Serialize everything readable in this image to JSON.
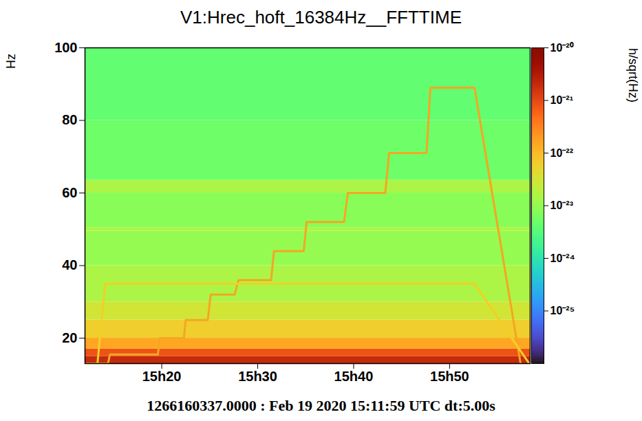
{
  "chart_data": {
    "type": "spectrogram",
    "title": "V1:Hrec_hoft_16384Hz__FFTTIME",
    "caption": "1266160337.0000 : Feb 19 2020 15:11:59 UTC dt:5.00s",
    "y_label": "Hz",
    "xlim": [
      12,
      58.4
    ],
    "xticks": [
      {
        "value": 20,
        "label": "15h20"
      },
      {
        "value": 30,
        "label": "15h30"
      },
      {
        "value": 40,
        "label": "15h40"
      },
      {
        "value": 50,
        "label": "15h50"
      }
    ],
    "ylim": [
      13,
      100
    ],
    "yticks": [
      20,
      40,
      60,
      80,
      100
    ],
    "cells": [
      {
        "f0": 13,
        "f1": 15,
        "value": 2e-21
      },
      {
        "f0": 15,
        "f1": 17,
        "value": 8e-22
      },
      {
        "f0": 17,
        "f1": 20,
        "value": 1.5e-22
      },
      {
        "f0": 20,
        "f1": 25,
        "value": 6e-23
      },
      {
        "f0": 25,
        "f1": 30,
        "value": 3e-23
      },
      {
        "f0": 30,
        "f1": 40,
        "value": 1.5e-23
      },
      {
        "f0": 40,
        "f1": 49.5,
        "value": 1e-23
      },
      {
        "f0": 49.5,
        "f1": 50.5,
        "value": 1.5e-23
      },
      {
        "f0": 50.5,
        "f1": 60,
        "value": 8e-24
      },
      {
        "f0": 60,
        "f1": 63.5,
        "value": 1.5e-23
      },
      {
        "f0": 63.5,
        "f1": 80,
        "value": 5e-24
      },
      {
        "f0": 80,
        "f1": 100,
        "value": 4e-24
      }
    ],
    "series": [
      {
        "color": "#f5a623",
        "x": [
          12.0,
          14.4,
          14.6,
          19.6,
          19.8,
          22.3,
          22.5,
          24.8,
          25.1,
          27.6,
          28.0,
          31.4,
          31.7,
          34.8,
          35.1,
          39.0,
          39.4,
          43.3,
          43.7,
          47.6,
          48.0,
          52.6,
          57.4
        ],
        "values": [
          13,
          13,
          15.5,
          15.5,
          20,
          20,
          25,
          25,
          32,
          32,
          36,
          36,
          44,
          44,
          52,
          52,
          60,
          60,
          71,
          71,
          89,
          89,
          13
        ]
      },
      {
        "color": "#f2d024",
        "x": [
          13.3,
          14.1,
          52.6,
          58.3
        ],
        "values": [
          13,
          35,
          35,
          13
        ]
      }
    ],
    "colorbar": {
      "label": "h/sqrt(Hz)",
      "log": true,
      "range": [
        1e-26,
        1e-20
      ],
      "ticks": [
        {
          "value": 1e-25,
          "label": "10⁻²⁵"
        },
        {
          "value": 1e-24,
          "label": "10⁻²⁴"
        },
        {
          "value": 1e-23,
          "label": "10⁻²³"
        },
        {
          "value": 1e-22,
          "label": "10⁻²²"
        },
        {
          "value": 1e-21,
          "label": "10⁻²¹"
        },
        {
          "value": 1e-20,
          "label": "10⁻²⁰"
        }
      ]
    }
  }
}
